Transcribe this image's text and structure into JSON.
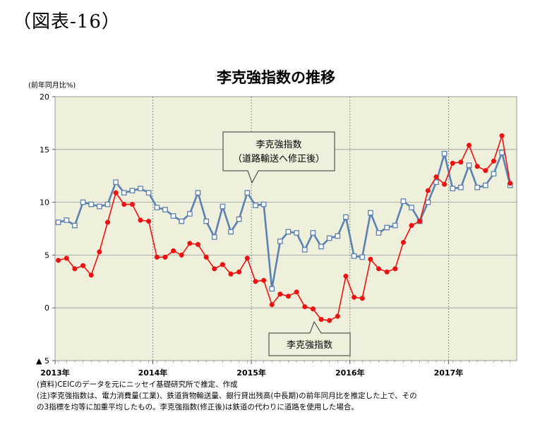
{
  "figure_label": "（図表-16）",
  "notes": {
    "source": "(資料)CEICのデータを元にニッセイ基礎研究所で推定、作成",
    "note1": "(注)李克強指数は、電力消費量(工業)、鉄道貨物輸送量、銀行貸出残高(中長期)の前年同月比を推定した上で、その",
    "note2": "の3指標を均等に加重平均したもの。李克強指数(修正後)は鉄道の代わりに道路を使用した場合。"
  },
  "chart_data": {
    "type": "line",
    "title": "李克強指数の推移",
    "unit": "(前年同月比%)",
    "ylim": [
      -5,
      20
    ],
    "yticks": [
      {
        "value": 20,
        "label": "20"
      },
      {
        "value": 15,
        "label": "15"
      },
      {
        "value": 10,
        "label": "10"
      },
      {
        "value": 5,
        "label": "5"
      },
      {
        "value": 0,
        "label": "0"
      },
      {
        "value": -5,
        "label": "▲ 5"
      }
    ],
    "x_start": "2013-01",
    "year_labels": [
      "2013年",
      "2014年",
      "2015年",
      "2016年",
      "2017年"
    ],
    "grid": true,
    "colors": {
      "plot_bg": "#eef0dc",
      "blue": "#5b80b2",
      "red": "#ee1111",
      "callout_bg": "#eef0dc",
      "callout_border": "#333333"
    },
    "series": [
      {
        "name": "李克強指数（道路輸送へ修正後）",
        "marker": "square",
        "callout_label": "李克強指数\n（道路輸送へ修正後）",
        "values": [
          8.1,
          8.3,
          7.8,
          10.0,
          9.8,
          9.6,
          9.8,
          11.9,
          10.9,
          11.1,
          11.3,
          10.9,
          9.5,
          9.3,
          8.7,
          8.2,
          8.9,
          10.9,
          8.2,
          6.7,
          9.6,
          7.2,
          8.4,
          10.9,
          9.7,
          9.8,
          1.8,
          6.3,
          7.2,
          7.1,
          5.5,
          7.1,
          5.8,
          6.6,
          6.8,
          8.6,
          4.9,
          4.8,
          9.0,
          7.1,
          7.6,
          7.8,
          10.1,
          9.5,
          8.2,
          10.0,
          11.9,
          14.6,
          11.3,
          11.4,
          13.5,
          11.4,
          11.6,
          12.7,
          14.7,
          11.6
        ]
      },
      {
        "name": "李克強指数",
        "marker": "circle",
        "callout_label": "李克強指数",
        "values": [
          4.5,
          4.7,
          3.7,
          4.0,
          3.1,
          5.3,
          8.1,
          10.9,
          9.8,
          9.8,
          8.3,
          8.2,
          4.8,
          4.8,
          5.4,
          5.0,
          6.1,
          6.0,
          4.8,
          3.7,
          4.1,
          3.2,
          3.4,
          4.7,
          2.5,
          2.6,
          0.3,
          1.3,
          1.1,
          1.5,
          0.1,
          -0.1,
          -1.1,
          -1.2,
          -0.8,
          3.0,
          1.0,
          0.9,
          4.6,
          3.7,
          3.4,
          3.7,
          6.2,
          7.8,
          8.2,
          11.1,
          12.4,
          11.7,
          13.7,
          13.8,
          15.4,
          13.4,
          13.0,
          13.9,
          16.3,
          11.8
        ]
      }
    ]
  }
}
